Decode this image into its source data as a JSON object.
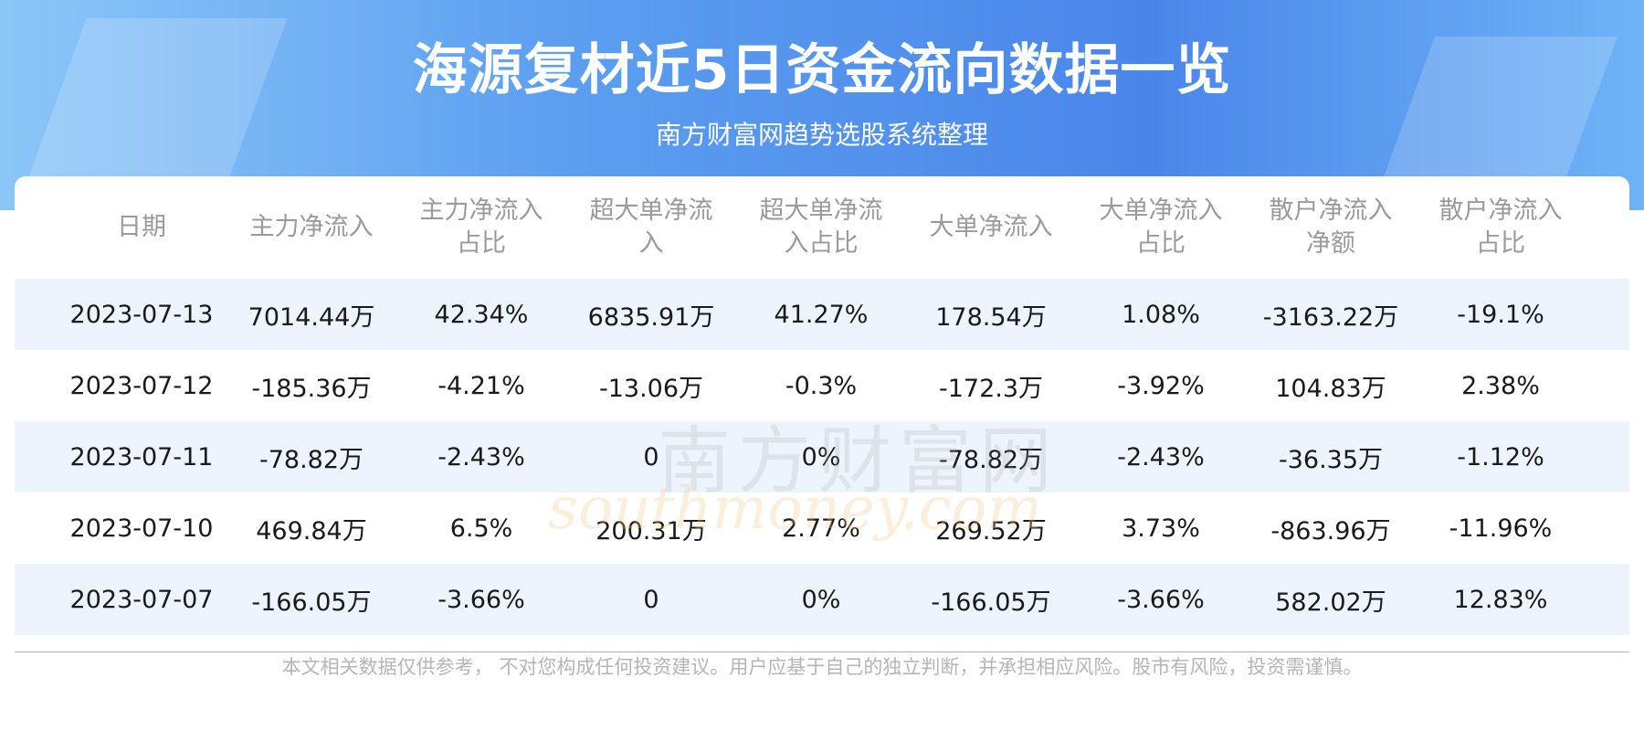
{
  "header": {
    "title": "海源复材近5日资金流向数据一览",
    "subtitle": "南方财富网趋势选股系统整理"
  },
  "table": {
    "columns": [
      "日期",
      "主力净流入",
      "主力净流入占比",
      "超大单净流入",
      "超大单净流入占比",
      "大单净流入",
      "大单净流入占比",
      "散户净流入净额",
      "散户净流入占比"
    ],
    "rows": [
      [
        "2023-07-13",
        "7014.44万",
        "42.34%",
        "6835.91万",
        "41.27%",
        "178.54万",
        "1.08%",
        "-3163.22万",
        "-19.1%"
      ],
      [
        "2023-07-12",
        "-185.36万",
        "-4.21%",
        "-13.06万",
        "-0.3%",
        "-172.3万",
        "-3.92%",
        "104.83万",
        "2.38%"
      ],
      [
        "2023-07-11",
        "-78.82万",
        "-2.43%",
        "0",
        "0%",
        "-78.82万",
        "-2.43%",
        "-36.35万",
        "-1.12%"
      ],
      [
        "2023-07-10",
        "469.84万",
        "6.5%",
        "200.31万",
        "2.77%",
        "269.52万",
        "3.73%",
        "-863.96万",
        "-11.96%"
      ],
      [
        "2023-07-07",
        "-166.05万",
        "-3.66%",
        "0",
        "0%",
        "-166.05万",
        "-3.66%",
        "582.02万",
        "12.83%"
      ]
    ]
  },
  "watermark": {
    "cn": "南方财富网",
    "en": "southmoney.com"
  },
  "footer": {
    "note": "本文相关数据仅供参考， 不对您构成任何投资建议。用户应基于自己的独立判断，并承担相应风险。股市有风险，投资需谨慎。"
  }
}
